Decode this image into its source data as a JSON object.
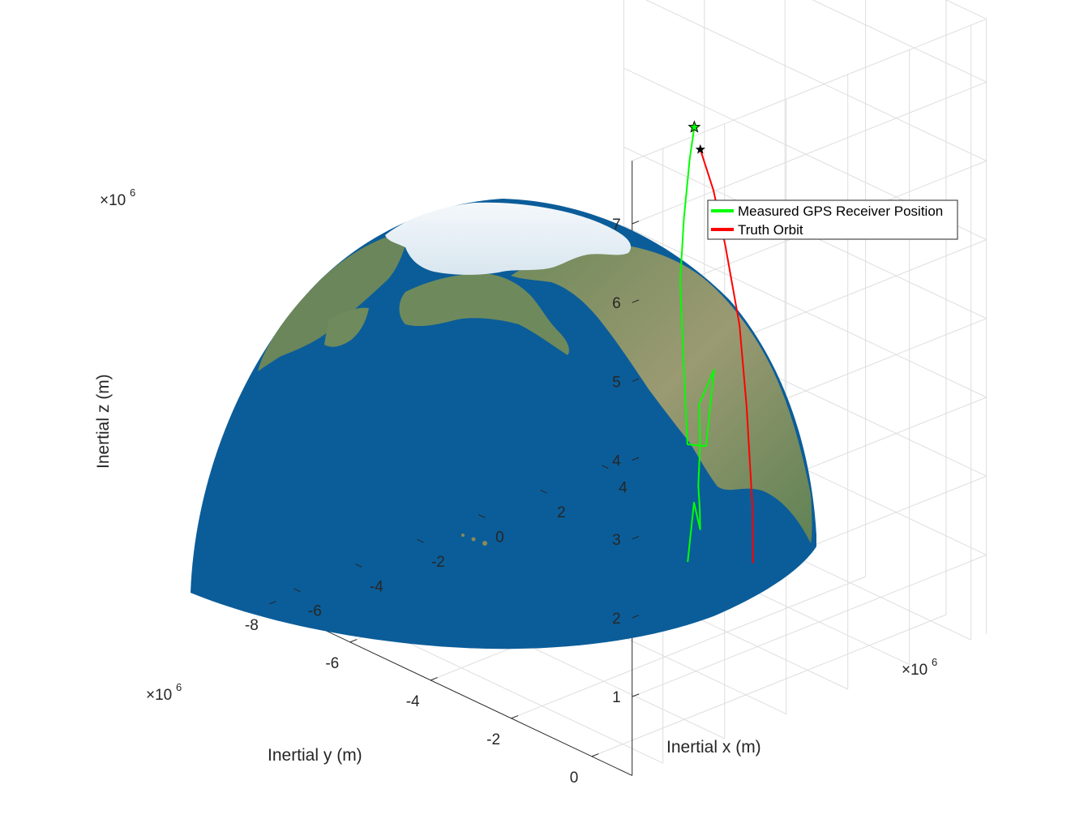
{
  "chart_data": {
    "type": "line",
    "title": "",
    "xlabel": "Inertial x (m)",
    "ylabel": "Inertial y (m)",
    "zlabel": "Inertial z (m)",
    "x_exponent_label": "×10^6",
    "y_exponent_label": "×10^6",
    "z_exponent_label": "×10^6",
    "xlim": [
      -7000000,
      4500000
    ],
    "ylim": [
      -8000000,
      1000000
    ],
    "zlim": [
      0,
      7800000
    ],
    "x_ticks": [
      "-6",
      "-4",
      "-2",
      "0",
      "2",
      "4"
    ],
    "y_ticks": [
      "0",
      "-2",
      "-4",
      "-6",
      "-8"
    ],
    "z_ticks": [
      "1",
      "2",
      "3",
      "4",
      "5",
      "6",
      "7"
    ],
    "grid": true,
    "legend_position": "top-right",
    "background_surface": "Earth globe (northern hemisphere, North Pacific and North America visible)",
    "series": [
      {
        "name": "Measured GPS Receiver Position",
        "color": "#00ff00",
        "start_marker": "pentagram",
        "points": [
          [
            -2255000,
            -1085000,
            6980000
          ],
          [
            -2085000,
            -1330000,
            6490000
          ],
          [
            -1775000,
            -1710000,
            5600000
          ],
          [
            -1505000,
            -2010000,
            4680000
          ],
          [
            -1125000,
            -2220000,
            3600000
          ],
          [
            -720000,
            -2430000,
            2390000
          ],
          [
            -455000,
            -2170000,
            2390000
          ],
          [
            -140000,
            -2210000,
            3300000
          ],
          [
            -270000,
            -2480000,
            2820000
          ],
          [
            -230000,
            -2490000,
            2300000
          ],
          [
            -80000,
            -2650000,
            1710000
          ],
          [
            -70000,
            -2620000,
            1420000
          ],
          [
            9000,
            -2670000,
            1140000
          ],
          [
            18000,
            -2830000,
            1440000
          ],
          [
            -44000,
            -2940000,
            670000
          ]
        ]
      },
      {
        "name": "Truth Orbit",
        "color": "#ff0000",
        "start_marker": "pentagram",
        "points": [
          [
            -2040000,
            -1100000,
            6660000
          ],
          [
            -1130000,
            -1470000,
            5910000
          ],
          [
            -130000,
            -1940000,
            4940000
          ],
          [
            800000,
            -2300000,
            3700000
          ],
          [
            1490000,
            -2650000,
            2470000
          ],
          [
            1990000,
            -2890000,
            1080000
          ],
          [
            2230000,
            -3060000,
            270000
          ]
        ]
      }
    ]
  }
}
